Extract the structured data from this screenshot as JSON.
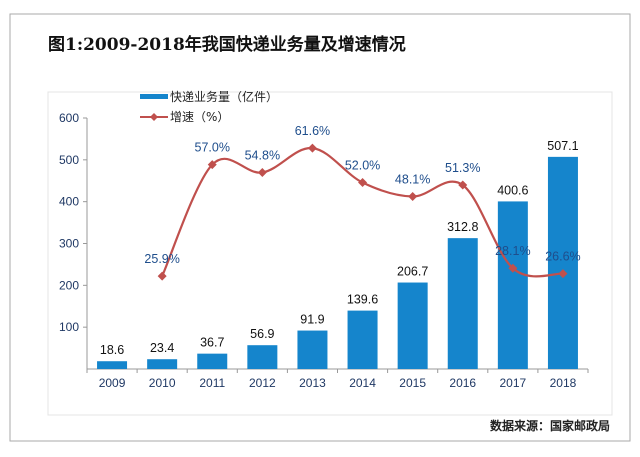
{
  "chart_data": {
    "type": "bar",
    "title": "图1:2009-2018年我国快递业务量及增速情况",
    "source": "数据来源：国家邮政局",
    "categories": [
      "2009",
      "2010",
      "2011",
      "2012",
      "2013",
      "2014",
      "2015",
      "2016",
      "2017",
      "2018"
    ],
    "ylim": [
      0,
      600
    ],
    "yticks": [
      "100",
      "200",
      "300",
      "400",
      "500",
      "600"
    ],
    "y2lim": [
      0,
      70
    ],
    "grid": false,
    "legend_position": "top-left",
    "series": [
      {
        "name": "快递业务量（亿件）",
        "type": "bar",
        "color": "#1585cc",
        "values": [
          18.6,
          23.4,
          36.7,
          56.9,
          91.9,
          139.6,
          206.7,
          312.8,
          400.6,
          507.1
        ],
        "labels": [
          "18.6",
          "23.4",
          "36.7",
          "56.9",
          "91.9",
          "139.6",
          "206.7",
          "312.8",
          "400.6",
          "507.1"
        ]
      },
      {
        "name": "增速（%）",
        "type": "line",
        "color": "#c0504d",
        "axis": "secondary",
        "values": [
          null,
          25.9,
          57.0,
          54.8,
          61.6,
          52.0,
          48.1,
          51.3,
          28.1,
          26.6
        ],
        "labels": [
          null,
          "25.9%",
          "57.0%",
          "54.8%",
          "61.6%",
          "52.0%",
          "48.1%",
          "51.3%",
          "28.1%",
          "26.6%"
        ]
      }
    ]
  }
}
